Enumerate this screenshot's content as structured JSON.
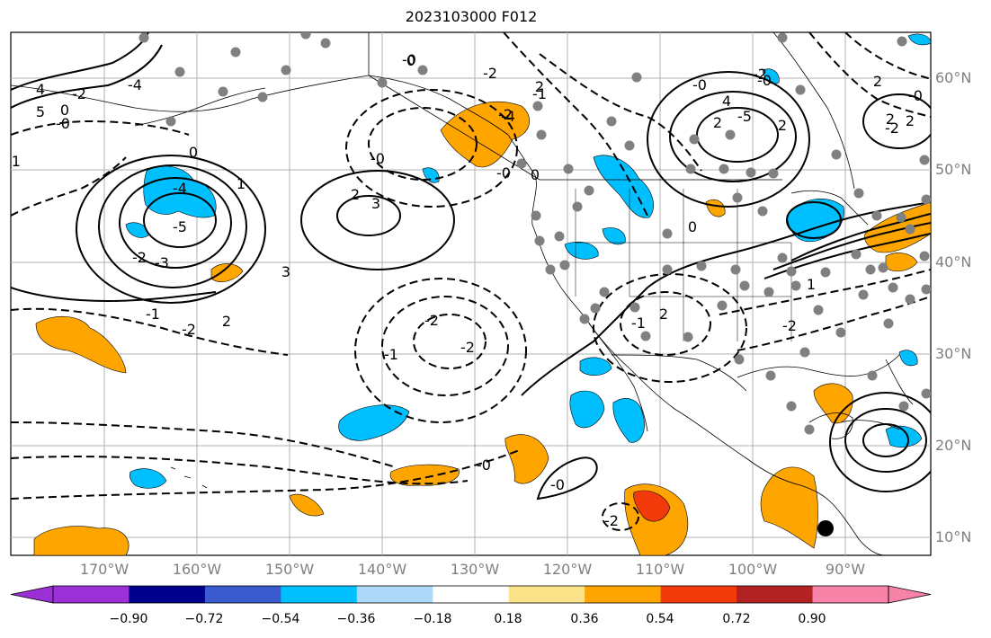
{
  "title": "2023103000 F012",
  "lon_labels": [
    "170°W",
    "160°W",
    "150°W",
    "140°W",
    "130°W",
    "120°W",
    "110°W",
    "100°W",
    "90°W"
  ],
  "lat_labels": [
    "60°N",
    "50°N",
    "40°N",
    "30°N",
    "20°N",
    "10°N"
  ],
  "colorbar": {
    "ticks": [
      "−0.90",
      "−0.72",
      "−0.54",
      "−0.36",
      "−0.18",
      "0.18",
      "0.36",
      "0.54",
      "0.72",
      "0.90"
    ],
    "colors": [
      "#9b30d6",
      "#00008b",
      "#3a5bd0",
      "#00bfff",
      "#add8f7",
      "#ffffff",
      "#fbe38a",
      "#ffa500",
      "#f33a0a",
      "#b22222",
      "#f883a8"
    ]
  },
  "contour_labels": [
    "-5",
    "-4",
    "-3",
    "-2",
    "-1",
    "-0",
    "0",
    "1",
    "2",
    "3",
    "4",
    "5",
    "-2",
    "-1",
    "0",
    "-2",
    "-4",
    "-0",
    "-2",
    "2",
    "-2",
    "-0",
    "-0",
    "-1",
    "-2",
    "-2",
    "-0",
    "-0",
    "-2",
    "0",
    "2",
    "3",
    "-5",
    "4",
    "2",
    "2",
    "0",
    "-0",
    "2",
    "-0",
    "2",
    "-2",
    "1",
    "2",
    "-1",
    "-4",
    "0",
    "-0",
    "-2",
    "-1",
    "2",
    "-2"
  ]
}
